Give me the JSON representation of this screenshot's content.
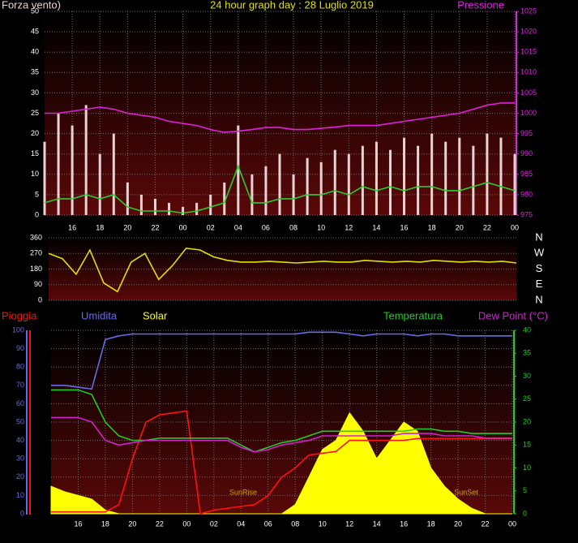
{
  "chart_data": [
    {
      "type": "line",
      "title": "24 hour graph day : 28 Luglio 2019",
      "categories": [
        null,
        null,
        "16",
        null,
        "18",
        null,
        "20",
        null,
        "22",
        null,
        "00",
        null,
        "02",
        null,
        "04",
        null,
        "06",
        null,
        "08",
        null,
        "10",
        null,
        "12",
        null,
        "14",
        null,
        "16",
        null,
        "18",
        null,
        "20",
        null,
        "22",
        null,
        "00"
      ],
      "ylim": [
        0,
        50
      ],
      "yticks": [
        0,
        5,
        10,
        15,
        20,
        25,
        30,
        35,
        40,
        45,
        50
      ],
      "y2lim": [
        975,
        1025
      ],
      "y2ticks": [
        975,
        980,
        985,
        990,
        995,
        1000,
        1005,
        1010,
        1015,
        1020,
        1025
      ],
      "axis_colors": {
        "y": "#ffffff",
        "y2": "#e020e0"
      },
      "grid": true,
      "series": [
        {
          "name": "Forza vento)",
          "type": "bar",
          "color": "#ead2d2",
          "values": [
            18,
            25,
            22,
            27,
            15,
            20,
            8,
            5,
            4,
            3,
            2,
            3,
            5,
            8,
            22,
            10,
            12,
            15,
            10,
            14,
            13,
            16,
            15,
            17,
            18,
            16,
            19,
            17,
            20,
            18,
            19,
            17,
            20,
            19,
            15
          ]
        },
        {
          "type": "line",
          "color": "#2ecc2e",
          "values": [
            3,
            4,
            4,
            5,
            4,
            5,
            2,
            1,
            1,
            1,
            0.5,
            1,
            2,
            3,
            12,
            3,
            3,
            4,
            4,
            5,
            5,
            6,
            5,
            7,
            6,
            7,
            6,
            7,
            7,
            6,
            6,
            7,
            8,
            7,
            6
          ]
        },
        {
          "name": "Pressione",
          "type": "line",
          "axis": "y2",
          "color": "#e020e0",
          "values": [
            1000,
            1000,
            1000.5,
            1001,
            1001.5,
            1001,
            1000,
            999.5,
            999,
            998,
            997.5,
            997,
            996,
            995.3,
            995.6,
            996,
            996.5,
            996.5,
            996,
            996,
            996.3,
            996.6,
            997,
            997,
            997,
            997.5,
            998,
            998.5,
            999,
            999.5,
            1000,
            1001,
            1002,
            1002.5,
            1002.5
          ]
        }
      ]
    },
    {
      "type": "line",
      "ylim": [
        0,
        360
      ],
      "yticks": [
        0,
        90,
        180,
        270,
        360
      ],
      "axis_colors": {
        "y": "#ffffff"
      },
      "grid": true,
      "compass_labels": [
        "N",
        "W",
        "S",
        "E",
        "N"
      ],
      "series": [
        {
          "type": "line",
          "color": "#e0e000",
          "values": [
            270,
            240,
            150,
            290,
            100,
            50,
            220,
            270,
            120,
            200,
            300,
            290,
            250,
            230,
            220,
            220,
            225,
            220,
            215,
            220,
            225,
            220,
            220,
            230,
            225,
            220,
            225,
            220,
            230,
            225,
            220,
            225,
            220,
            225,
            215
          ]
        }
      ]
    },
    {
      "type": "line",
      "categories": [
        null,
        null,
        "16",
        null,
        "18",
        null,
        "20",
        null,
        "22",
        null,
        "00",
        null,
        "02",
        null,
        "04",
        null,
        "06",
        null,
        "08",
        null,
        "10",
        null,
        "12",
        null,
        "14",
        null,
        "16",
        null,
        "18",
        null,
        "20",
        null,
        "22",
        null,
        "00"
      ],
      "ylim": [
        0,
        100
      ],
      "yticks": [
        0,
        10,
        20,
        30,
        40,
        50,
        60,
        70,
        80,
        90,
        100
      ],
      "y2lim": [
        0,
        40
      ],
      "y2ticks": [
        0,
        5,
        10,
        15,
        20,
        25,
        30,
        35,
        40
      ],
      "axis_colors": {
        "y": "#6a6ae8",
        "y2": "#22cc22"
      },
      "grid": true,
      "annotations": [
        "SunRise",
        "SunSet"
      ],
      "series": [
        {
          "name": "Pioggia",
          "type": "line",
          "color": "#ff1010",
          "values": [
            1,
            1,
            1,
            1,
            1,
            5,
            30,
            50,
            54,
            55,
            56,
            0,
            2,
            3,
            4,
            5,
            10,
            20,
            25,
            32,
            33,
            34,
            40,
            40,
            40,
            40,
            40,
            41,
            41,
            41,
            41,
            41,
            41,
            41,
            41
          ]
        },
        {
          "name": "Umidita",
          "type": "line",
          "color": "#6a6ae8",
          "values": [
            70,
            70,
            69,
            68,
            95,
            97,
            98,
            98,
            98,
            98,
            98,
            98,
            98,
            98,
            98,
            98,
            98,
            98,
            98,
            99,
            99,
            99,
            98,
            97,
            98,
            98,
            98,
            97,
            98,
            98,
            97,
            97,
            97,
            97,
            97
          ]
        },
        {
          "name": "Solar",
          "type": "area",
          "color": "#ffff00",
          "values": [
            15,
            12,
            10,
            8,
            2,
            0,
            0,
            0,
            0,
            0,
            0,
            0,
            0,
            0,
            0,
            0,
            0,
            0,
            5,
            20,
            35,
            40,
            55,
            45,
            30,
            40,
            50,
            45,
            25,
            15,
            8,
            3,
            0,
            0,
            0
          ]
        },
        {
          "name": "Temperatura",
          "type": "line",
          "axis": "y2",
          "color": "#22cc22",
          "values": [
            27,
            27,
            27,
            26,
            20,
            17,
            16,
            16,
            16.5,
            16.5,
            16.5,
            16.5,
            16.5,
            16.5,
            15,
            13.5,
            14.5,
            15.5,
            16,
            17,
            18,
            18,
            18,
            18,
            18,
            18,
            18,
            18.5,
            18.5,
            18,
            18,
            17.5,
            17.5,
            17.5,
            17.5
          ]
        },
        {
          "name": "Dew Point (°C)",
          "type": "line",
          "axis": "y2",
          "color": "#d020d0",
          "values": [
            21,
            21,
            21,
            20,
            16,
            15,
            15.5,
            16,
            16,
            16,
            16,
            16,
            16,
            16,
            14.5,
            13.5,
            14,
            15,
            15.5,
            16,
            17,
            17,
            17,
            17,
            17,
            17,
            17.5,
            17.5,
            17.5,
            17,
            17,
            17,
            16.5,
            16.5,
            16.5
          ]
        }
      ]
    }
  ]
}
